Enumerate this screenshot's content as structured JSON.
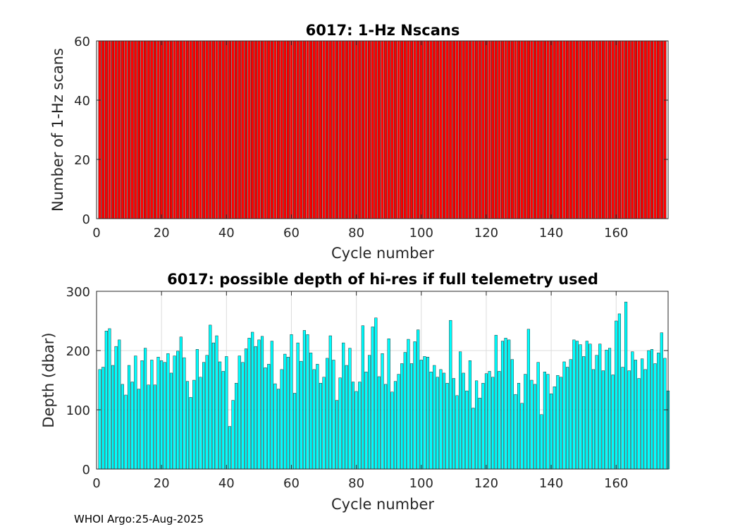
{
  "footer": "WHOI Argo:25-Aug-2025",
  "chart_data": [
    {
      "type": "bar",
      "title": "6017: 1-Hz Nscans",
      "xlabel": "Cycle number",
      "ylabel": "Number of 1-Hz scans",
      "xlim": [
        0,
        176
      ],
      "ylim": [
        0,
        60
      ],
      "xticks": [
        0,
        20,
        40,
        60,
        80,
        100,
        120,
        140,
        160
      ],
      "yticks": [
        0,
        20,
        40,
        60
      ],
      "grid": false,
      "color": "#ff0000",
      "x_start": 1,
      "values": [
        60,
        60,
        60,
        60,
        60,
        60,
        60,
        60,
        60,
        60,
        60,
        60,
        60,
        60,
        60,
        60,
        60,
        60,
        60,
        60,
        60,
        60,
        60,
        60,
        60,
        60,
        60,
        60,
        60,
        60,
        60,
        60,
        60,
        60,
        60,
        60,
        60,
        60,
        60,
        60,
        60,
        60,
        60,
        60,
        60,
        60,
        60,
        60,
        60,
        60,
        60,
        60,
        60,
        60,
        60,
        60,
        60,
        60,
        60,
        60,
        60,
        60,
        60,
        60,
        60,
        60,
        60,
        60,
        60,
        60,
        60,
        60,
        60,
        60,
        60,
        60,
        60,
        60,
        60,
        60,
        60,
        60,
        60,
        60,
        60,
        60,
        60,
        60,
        60,
        60,
        60,
        60,
        60,
        60,
        60,
        60,
        60,
        60,
        60,
        60,
        60,
        60,
        60,
        60,
        60,
        60,
        60,
        60,
        60,
        60,
        60,
        60,
        60,
        60,
        60,
        60,
        60,
        60,
        60,
        60,
        60,
        60,
        60,
        60,
        60,
        60,
        60,
        60,
        60,
        60,
        60,
        60,
        60,
        60,
        60,
        60,
        60,
        60,
        60,
        60,
        60,
        60,
        60,
        60,
        60,
        60,
        60,
        60,
        60,
        60,
        60,
        60,
        60,
        60,
        60,
        60,
        60,
        60,
        60,
        60,
        60,
        60,
        60,
        60,
        60,
        60,
        60,
        60,
        60,
        60,
        60,
        60,
        60,
        60,
        60
      ]
    },
    {
      "type": "bar",
      "title": "6017: possible depth of hi-res if full telemetry used",
      "xlabel": "Cycle number",
      "ylabel": "Depth (dbar)",
      "xlim": [
        0,
        176
      ],
      "ylim": [
        0,
        300
      ],
      "xticks": [
        0,
        20,
        40,
        60,
        80,
        100,
        120,
        140,
        160
      ],
      "yticks": [
        0,
        100,
        200,
        300
      ],
      "grid": true,
      "color": "#00ffff",
      "x_start": 1,
      "values": [
        168,
        172,
        233,
        237,
        175,
        207,
        218,
        143,
        125,
        175,
        147,
        191,
        135,
        183,
        204,
        142,
        184,
        142,
        189,
        183,
        180,
        195,
        162,
        191,
        199,
        223,
        188,
        148,
        121,
        150,
        202,
        155,
        180,
        192,
        243,
        213,
        225,
        181,
        165,
        190,
        72,
        116,
        145,
        191,
        180,
        203,
        221,
        231,
        207,
        218,
        224,
        171,
        177,
        216,
        144,
        135,
        168,
        194,
        189,
        227,
        128,
        213,
        182,
        234,
        227,
        196,
        168,
        177,
        145,
        155,
        187,
        225,
        184,
        116,
        154,
        213,
        175,
        204,
        147,
        131,
        147,
        242,
        164,
        192,
        240,
        255,
        156,
        195,
        143,
        220,
        130,
        148,
        160,
        178,
        197,
        219,
        178,
        215,
        235,
        184,
        190,
        189,
        164,
        175,
        155,
        168,
        162,
        145,
        251,
        153,
        124,
        198,
        162,
        132,
        183,
        103,
        149,
        120,
        145,
        161,
        165,
        155,
        226,
        165,
        216,
        221,
        218,
        185,
        126,
        145,
        111,
        160,
        236,
        150,
        143,
        180,
        92,
        164,
        160,
        127,
        139,
        158,
        155,
        181,
        172,
        185,
        218,
        216,
        210,
        190,
        216,
        211,
        168,
        192,
        211,
        166,
        201,
        204,
        159,
        250,
        262,
        172,
        282,
        166,
        198,
        184,
        153,
        186,
        168,
        200,
        202,
        178,
        196,
        230,
        187,
        132
      ]
    }
  ]
}
